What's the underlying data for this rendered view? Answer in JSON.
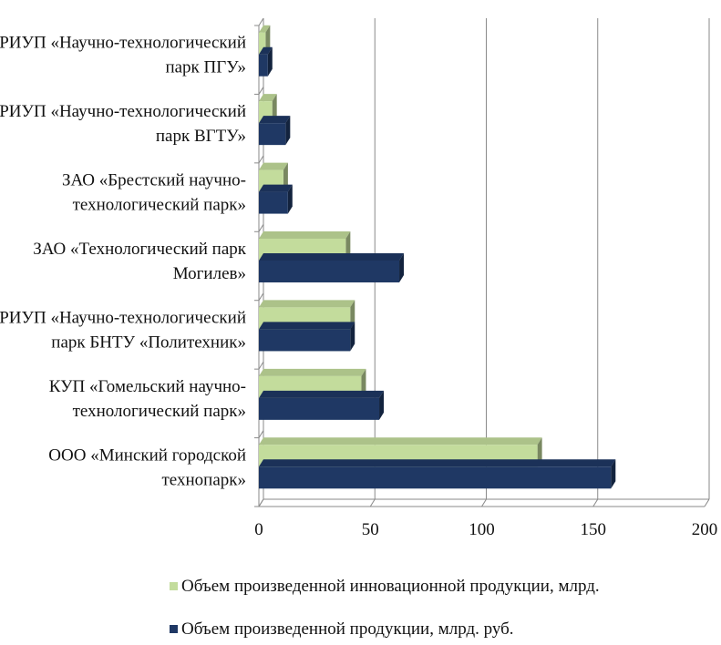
{
  "chart_data": {
    "type": "bar",
    "orientation": "horizontal",
    "categories": [
      [
        "ООО «Минский городской",
        "технопарк»"
      ],
      [
        "КУП «Гомельский научно-",
        "технологический парк»"
      ],
      [
        "РИУП «Научно-технологический",
        "парк БНТУ  «Политехник»"
      ],
      [
        "ЗАО «Технологический парк",
        "Могилев»"
      ],
      [
        "ЗАО «Брестский научно-",
        "технологический парк»"
      ],
      [
        "РИУП «Научно-технологический",
        "парк ВГТУ»"
      ],
      [
        "РИУП «Научно-технологический",
        "парк ПГУ»"
      ]
    ],
    "series": [
      {
        "name": "Объем произведенной  инновационной продукции, млрд.",
        "values": [
          125,
          46,
          41,
          39,
          11,
          6,
          3
        ],
        "color": "#c3dc9c"
      },
      {
        "name": "Объем произведенной продукции, млрд. руб.",
        "values": [
          158,
          54,
          41,
          63,
          13,
          12,
          4
        ],
        "color": "#1f3864"
      }
    ],
    "xlim": [
      0,
      200
    ],
    "xticks": [
      "0",
      "50",
      "100",
      "150",
      "200"
    ],
    "grid": true,
    "legend": "bottom",
    "title": "",
    "xlabel": "",
    "ylabel": ""
  }
}
